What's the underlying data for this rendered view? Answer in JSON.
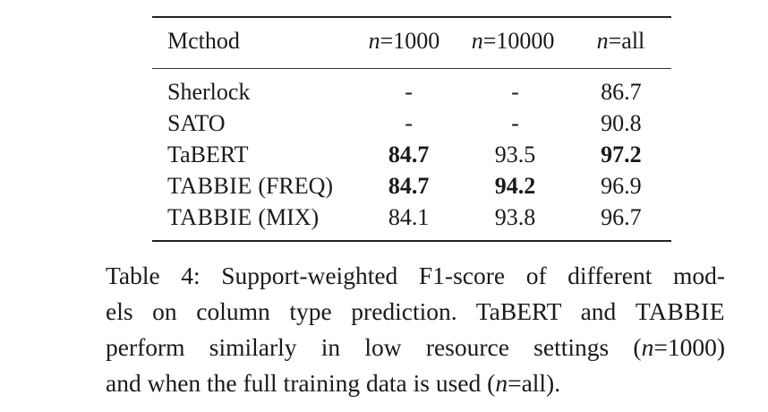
{
  "table": {
    "headers": {
      "method": "Mcthod",
      "n1_var": "n",
      "n1_rest": "=1000",
      "n2_var": "n",
      "n2_rest": "=10000",
      "n3_var": "n",
      "n3_rest": "=all"
    },
    "rows": [
      {
        "method": "Sherlock",
        "method_style": "plain",
        "n1000": "-",
        "n10000": "-",
        "nall": "86.7"
      },
      {
        "method": "SATO",
        "method_style": "plain",
        "n1000": "-",
        "n10000": "-",
        "nall": "90.8"
      },
      {
        "method": "TaBERT",
        "method_style": "plain",
        "n1000": "84.7",
        "n10000": "93.5",
        "nall": "97.2"
      },
      {
        "method_sc": "TABBIE",
        "method_suffix": " (FREQ)",
        "method_style": "smallcaps",
        "n1000": "84.7",
        "n10000": "94.2",
        "nall": "96.9"
      },
      {
        "method_sc": "TABBIE",
        "method_suffix": " (MIX)",
        "method_style": "smallcaps",
        "n1000": "84.1",
        "n10000": "93.8",
        "nall": "96.7"
      }
    ],
    "bold_cells": [
      "row-2-n1000",
      "row-2-nall",
      "row-3-n1000",
      "row-3-n10000"
    ]
  },
  "caption": {
    "line1": "Table 4:  Support-weighted F1-score of different mod-",
    "line2_a": "els on column type prediction.  TaBERT and ",
    "line2_sc": "TABBIE",
    "line3_a": "perform similarly in low resource settings (",
    "line3_var": "n",
    "line3_b": "=1000)",
    "line4_a": "and when the full training data is used (",
    "line4_var": "n",
    "line4_b": "=all)."
  }
}
